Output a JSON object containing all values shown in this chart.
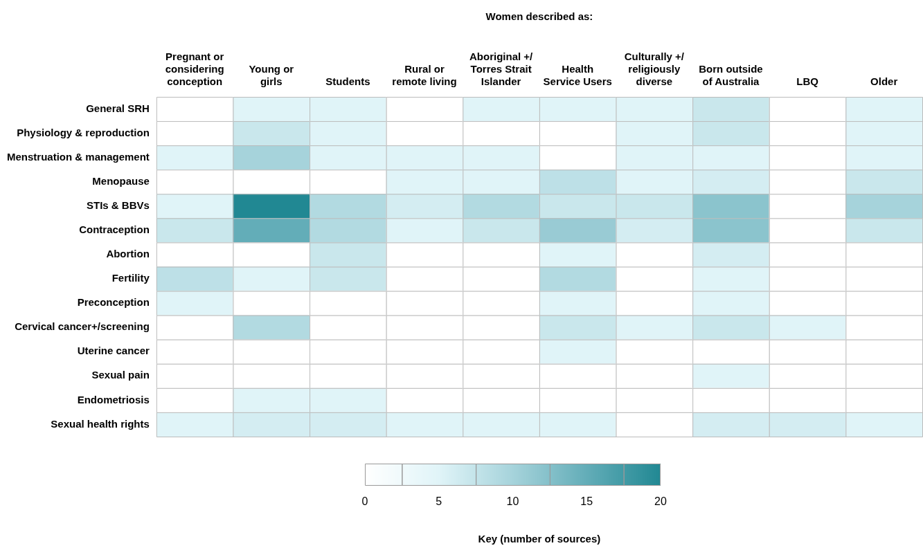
{
  "chart_data": {
    "type": "heatmap",
    "title": "Women described as:",
    "clabel": "Key (number of sources)",
    "categories": [
      "Pregnant or considering conception",
      "Young or girls",
      "Students",
      "Rural or remote living",
      "Aboriginal +/ Torres Strait Islander",
      "Health Service Users",
      "Culturally +/ religiously diverse",
      "Born outside of Australia",
      "LBQ",
      "Older"
    ],
    "y_categories": [
      "General SRH",
      "Physiology & reproduction",
      "Menstruation & management",
      "Menopause",
      "STIs & BBVs",
      "Contraception",
      "Abortion",
      "Fertility",
      "Preconception",
      "Cervical cancer+/screening",
      "Uterine cancer",
      "Sexual pain",
      "Endometriosis",
      "Sexual health rights"
    ],
    "cells": [
      [
        0,
        5,
        5,
        0,
        5,
        5,
        5,
        7,
        0,
        5
      ],
      [
        0,
        7,
        5,
        0,
        0,
        0,
        5,
        7,
        0,
        5
      ],
      [
        5,
        10,
        5,
        5,
        5,
        0,
        5,
        5,
        0,
        5
      ],
      [
        0,
        0,
        0,
        5,
        5,
        8,
        5,
        6,
        0,
        7
      ],
      [
        5,
        20,
        9,
        6,
        9,
        7,
        7,
        12,
        0,
        10
      ],
      [
        7,
        15,
        9,
        5,
        7,
        11,
        6,
        12,
        0,
        7
      ],
      [
        0,
        0,
        7,
        0,
        0,
        5,
        0,
        6,
        0,
        0
      ],
      [
        8,
        5,
        7,
        0,
        0,
        9,
        0,
        5,
        0,
        0
      ],
      [
        5,
        0,
        0,
        0,
        0,
        5,
        0,
        5,
        0,
        0
      ],
      [
        0,
        9,
        0,
        0,
        0,
        7,
        5,
        7,
        5,
        0
      ],
      [
        0,
        0,
        0,
        0,
        0,
        5,
        0,
        0,
        0,
        0
      ],
      [
        0,
        0,
        0,
        0,
        0,
        0,
        0,
        5,
        0,
        0
      ],
      [
        0,
        5,
        5,
        0,
        0,
        0,
        0,
        0,
        0,
        0
      ],
      [
        5,
        6,
        6,
        5,
        5,
        5,
        0,
        6,
        6,
        5
      ]
    ],
    "clim": [
      0,
      20
    ],
    "cticks": [
      0,
      5,
      10,
      15,
      20
    ]
  }
}
